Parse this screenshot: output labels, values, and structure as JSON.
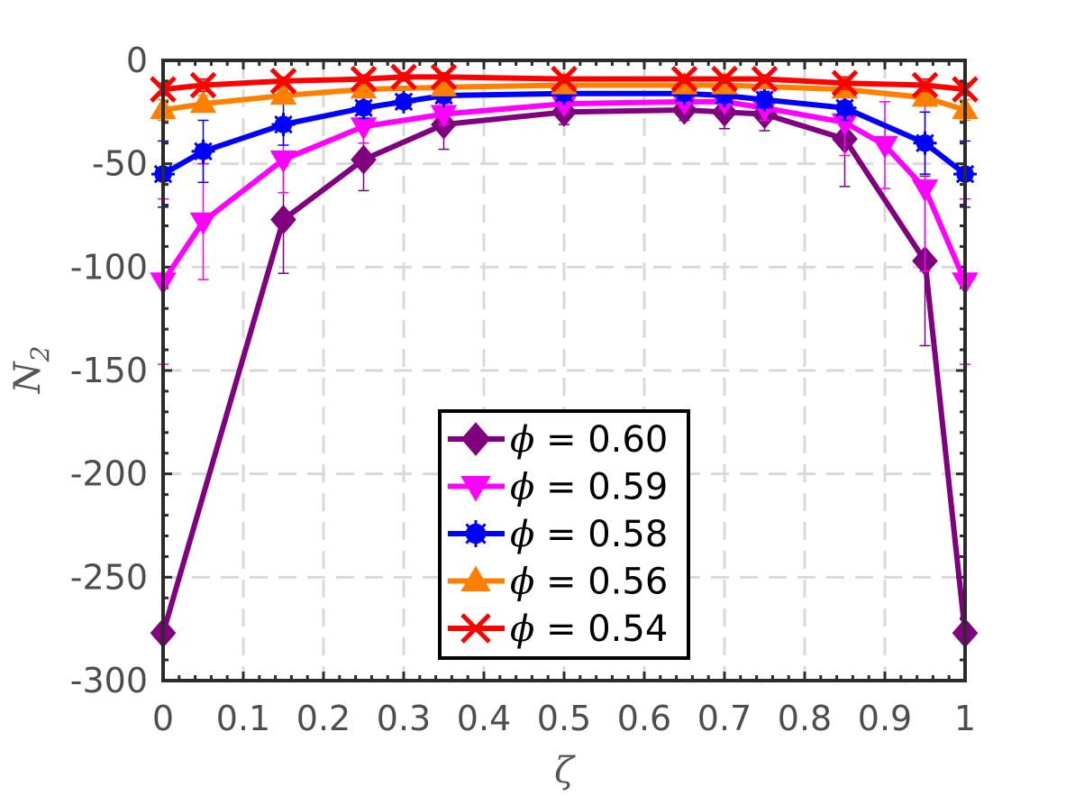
{
  "chart_data": {
    "type": "line",
    "xlabel": "ζ",
    "ylabel": "N",
    "ylabel_subscript": "2",
    "xlim": [
      0,
      1
    ],
    "ylim": [
      -300,
      0
    ],
    "grid": true,
    "legend_position": "bottom-center",
    "x_ticks": [
      0,
      0.1,
      0.2,
      0.3,
      0.4,
      0.5,
      0.6,
      0.7,
      0.8,
      0.9,
      1
    ],
    "x_tick_labels": [
      "0",
      "0.1",
      "0.2",
      "0.3",
      "0.4",
      "0.5",
      "0.6",
      "0.7",
      "0.8",
      "0.9",
      "1"
    ],
    "y_ticks": [
      0,
      -50,
      -100,
      -150,
      -200,
      -250,
      -300
    ],
    "y_tick_labels": [
      "0",
      "-50",
      "-100",
      "-150",
      "-200",
      "-250",
      "-300"
    ],
    "series": [
      {
        "name": "0.60",
        "legend_prefix": "ϕ",
        "legend_text": " = 0.60",
        "color": "#800080",
        "marker": "diamond",
        "x": [
          0,
          0.15,
          0.25,
          0.35,
          0.5,
          0.65,
          0.7,
          0.75,
          0.85,
          0.95,
          1
        ],
        "y": [
          -277,
          -77,
          -48,
          -31,
          -25,
          -24,
          -25,
          -26,
          -38,
          -97,
          -277
        ],
        "err": [
          0,
          26,
          15,
          12,
          6,
          5,
          8,
          8,
          23,
          41,
          0
        ]
      },
      {
        "name": "0.59",
        "legend_prefix": "ϕ",
        "legend_text": " = 0.59",
        "color": "#ff00ff",
        "marker": "triangle-down",
        "x": [
          0,
          0.05,
          0.15,
          0.25,
          0.35,
          0.5,
          0.65,
          0.7,
          0.75,
          0.85,
          0.9,
          0.95,
          1
        ],
        "y": [
          -107,
          -78,
          -48,
          -32,
          -26,
          -21,
          -20,
          -20,
          -23,
          -30,
          -41,
          -62,
          -107
        ],
        "err": [
          40,
          28,
          16,
          8,
          5,
          3,
          3,
          3,
          6,
          16,
          21,
          40,
          40
        ]
      },
      {
        "name": "0.58",
        "legend_prefix": "ϕ",
        "legend_text": " = 0.58",
        "color": "#0000ff",
        "marker": "asterisk",
        "x": [
          0,
          0.05,
          0.15,
          0.25,
          0.3,
          0.35,
          0.5,
          0.65,
          0.7,
          0.75,
          0.85,
          0.95,
          1
        ],
        "y": [
          -55,
          -44,
          -31,
          -23,
          -20,
          -17,
          -16,
          -16,
          -17,
          -19,
          -23,
          -40,
          -55
        ],
        "err": [
          16,
          15,
          10,
          5,
          3,
          3,
          2,
          2,
          3,
          4,
          6,
          15,
          16
        ]
      },
      {
        "name": "0.56",
        "legend_prefix": "ϕ",
        "legend_text": " = 0.56",
        "color": "#ff8000",
        "marker": "triangle-up",
        "x": [
          0,
          0.05,
          0.15,
          0.25,
          0.35,
          0.5,
          0.65,
          0.7,
          0.85,
          0.95,
          1
        ],
        "y": [
          -24,
          -21,
          -17,
          -14,
          -13,
          -12,
          -12,
          -12,
          -14,
          -18,
          -24
        ],
        "err": [
          5,
          4,
          3,
          2,
          2,
          2,
          2,
          2,
          3,
          4,
          5
        ]
      },
      {
        "name": "0.54",
        "legend_prefix": "ϕ",
        "legend_text": " = 0.54",
        "color": "#ff0000",
        "marker": "x",
        "x": [
          0,
          0.05,
          0.15,
          0.25,
          0.3,
          0.35,
          0.5,
          0.65,
          0.7,
          0.75,
          0.85,
          0.95,
          1
        ],
        "y": [
          -14,
          -12,
          -10,
          -9,
          -8,
          -8,
          -9,
          -9,
          -9,
          -9,
          -11,
          -12,
          -14
        ],
        "err": [
          3,
          3,
          2,
          2,
          2,
          2,
          2,
          2,
          2,
          2,
          3,
          3,
          3
        ]
      }
    ]
  }
}
